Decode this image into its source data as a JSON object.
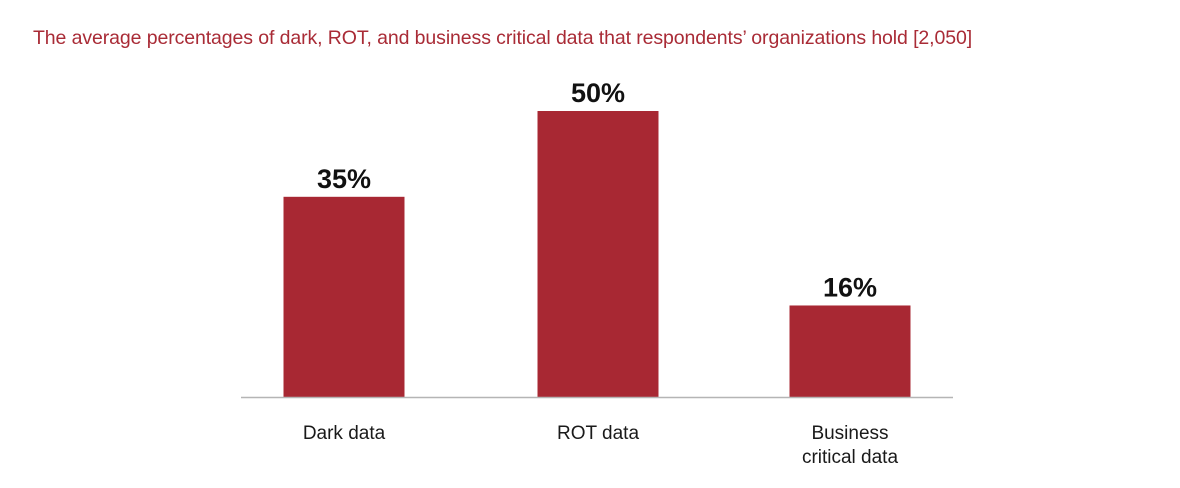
{
  "colors": {
    "title": "#a92b36",
    "bar": "#a82833",
    "axis": "#b5b5b5",
    "value_text": "#111111",
    "label_text": "#1a1a1a"
  },
  "chart_data": {
    "type": "bar",
    "title": "The average percentages of dark, ROT, and business critical data that respondents’ organizations hold [2,050]",
    "categories": [
      [
        "Dark data"
      ],
      [
        "ROT data"
      ],
      [
        "Business",
        "critical data"
      ]
    ],
    "values": [
      35,
      50,
      16
    ],
    "value_labels": [
      "35%",
      "50%",
      "16%"
    ],
    "unit": "%",
    "ylim": [
      0,
      50
    ],
    "xlabel": "",
    "ylabel": "",
    "grid": false,
    "legend": "none"
  }
}
